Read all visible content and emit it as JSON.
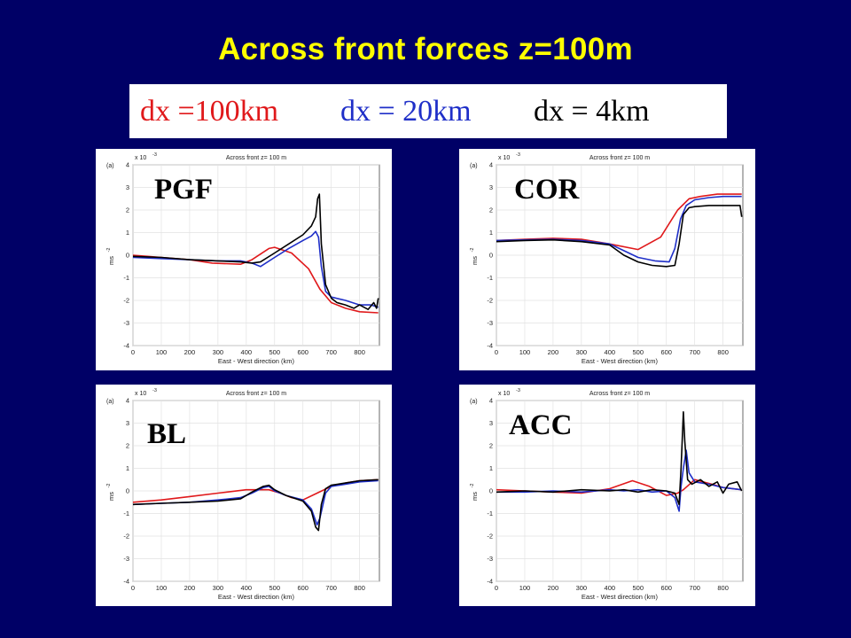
{
  "slide": {
    "title": "Across front forces z=100m",
    "title_color": "#ffff00",
    "background": "#000066"
  },
  "legend": [
    {
      "text": "dx =100km",
      "color": "#e0191b"
    },
    {
      "text": "dx = 20km",
      "color": "#1f2fc8"
    },
    {
      "text": "dx = 4km",
      "color": "#000000"
    }
  ],
  "chart_data": [
    {
      "type": "line",
      "label": "PGF",
      "panel_tag": "(a)",
      "title": "Across front z= 100 m",
      "xlabel": "East - West direction (km)",
      "ylabel": "ms",
      "ylabel_exp": "-2",
      "y_multiplier": "x 10",
      "y_multiplier_exp": "-3",
      "xlim": [
        0,
        870
      ],
      "ylim": [
        -4,
        4
      ],
      "xticks": [
        0,
        100,
        200,
        300,
        400,
        500,
        600,
        700,
        800
      ],
      "yticks": [
        -4,
        -3,
        -2,
        -1,
        0,
        1,
        2,
        3,
        4
      ],
      "grid": true,
      "series": [
        {
          "color": "#e0191b",
          "x": [
            0,
            100,
            200,
            280,
            380,
            420,
            480,
            500,
            560,
            620,
            660,
            700,
            750,
            800,
            866
          ],
          "y": [
            0,
            -0.1,
            -0.2,
            -0.35,
            -0.4,
            -0.2,
            0.3,
            0.35,
            0.1,
            -0.6,
            -1.5,
            -2.1,
            -2.35,
            -2.5,
            -2.55
          ]
        },
        {
          "color": "#1f2fc8",
          "x": [
            0,
            100,
            200,
            300,
            380,
            420,
            450,
            500,
            550,
            600,
            630,
            645,
            655,
            665,
            680,
            700,
            750,
            800,
            840,
            866
          ],
          "y": [
            -0.1,
            -0.15,
            -0.2,
            -0.25,
            -0.25,
            -0.35,
            -0.5,
            -0.1,
            0.3,
            0.65,
            0.85,
            1.05,
            0.8,
            -0.5,
            -1.6,
            -1.85,
            -2.0,
            -2.2,
            -2.2,
            -2.3
          ]
        },
        {
          "color": "#000000",
          "x": [
            0,
            100,
            200,
            300,
            380,
            420,
            450,
            500,
            550,
            600,
            630,
            645,
            652,
            658,
            665,
            680,
            700,
            720,
            750,
            780,
            800,
            830,
            850,
            860,
            866
          ],
          "y": [
            -0.05,
            -0.1,
            -0.2,
            -0.25,
            -0.3,
            -0.35,
            -0.3,
            0.1,
            0.5,
            0.9,
            1.3,
            1.7,
            2.5,
            2.7,
            0.5,
            -1.3,
            -1.9,
            -2.1,
            -2.2,
            -2.35,
            -2.2,
            -2.4,
            -2.1,
            -2.35,
            -1.9
          ]
        }
      ]
    },
    {
      "type": "line",
      "label": "COR",
      "panel_tag": "(a)",
      "title": "Across front z= 100 m",
      "xlabel": "East - West direction (km)",
      "ylabel": "ms",
      "ylabel_exp": "-2",
      "y_multiplier": "x 10",
      "y_multiplier_exp": "-3",
      "xlim": [
        0,
        870
      ],
      "ylim": [
        -4,
        4
      ],
      "xticks": [
        0,
        100,
        200,
        300,
        400,
        500,
        600,
        700,
        800
      ],
      "yticks": [
        -4,
        -3,
        -2,
        -1,
        0,
        1,
        2,
        3,
        4
      ],
      "grid": true,
      "series": [
        {
          "color": "#e0191b",
          "x": [
            0,
            100,
            200,
            300,
            400,
            500,
            580,
            640,
            680,
            720,
            780,
            866
          ],
          "y": [
            0.65,
            0.7,
            0.75,
            0.7,
            0.5,
            0.25,
            0.8,
            2.0,
            2.5,
            2.6,
            2.7,
            2.7
          ]
        },
        {
          "color": "#1f2fc8",
          "x": [
            0,
            100,
            200,
            300,
            400,
            450,
            500,
            560,
            610,
            630,
            650,
            670,
            700,
            750,
            800,
            866
          ],
          "y": [
            0.65,
            0.68,
            0.7,
            0.65,
            0.5,
            0.2,
            -0.1,
            -0.25,
            -0.3,
            0.3,
            1.6,
            2.2,
            2.45,
            2.55,
            2.6,
            2.6
          ]
        },
        {
          "color": "#000000",
          "x": [
            0,
            100,
            200,
            300,
            400,
            450,
            500,
            550,
            600,
            630,
            645,
            660,
            680,
            700,
            750,
            800,
            840,
            860,
            866
          ],
          "y": [
            0.6,
            0.65,
            0.68,
            0.6,
            0.45,
            0.0,
            -0.3,
            -0.45,
            -0.5,
            -0.45,
            0.5,
            1.8,
            2.1,
            2.15,
            2.2,
            2.2,
            2.2,
            2.2,
            1.7
          ]
        }
      ]
    },
    {
      "type": "line",
      "label": "BL",
      "panel_tag": "(a)",
      "title": "Across front z= 100 m",
      "xlabel": "East - West direction (km)",
      "ylabel": "ms",
      "ylabel_exp": "-2",
      "y_multiplier": "x 10",
      "y_multiplier_exp": "-3",
      "xlim": [
        0,
        870
      ],
      "ylim": [
        -4,
        4
      ],
      "xticks": [
        0,
        100,
        200,
        300,
        400,
        500,
        600,
        700,
        800
      ],
      "yticks": [
        -4,
        -3,
        -2,
        -1,
        0,
        1,
        2,
        3,
        4
      ],
      "grid": true,
      "series": [
        {
          "color": "#e0191b",
          "x": [
            0,
            100,
            200,
            300,
            400,
            480,
            520,
            560,
            600,
            650,
            700,
            750,
            800,
            866
          ],
          "y": [
            -0.5,
            -0.4,
            -0.25,
            -0.1,
            0.05,
            0.05,
            -0.1,
            -0.3,
            -0.4,
            -0.1,
            0.2,
            0.35,
            0.45,
            0.5
          ]
        },
        {
          "color": "#1f2fc8",
          "x": [
            0,
            100,
            200,
            300,
            380,
            420,
            460,
            480,
            500,
            540,
            600,
            630,
            650,
            660,
            680,
            700,
            750,
            800,
            866
          ],
          "y": [
            -0.6,
            -0.55,
            -0.5,
            -0.4,
            -0.3,
            -0.1,
            0.15,
            0.2,
            0.0,
            -0.2,
            -0.4,
            -0.8,
            -1.5,
            -1.2,
            -0.1,
            0.2,
            0.3,
            0.4,
            0.45
          ]
        },
        {
          "color": "#000000",
          "x": [
            0,
            100,
            200,
            300,
            380,
            420,
            460,
            480,
            500,
            540,
            600,
            630,
            645,
            655,
            665,
            680,
            700,
            750,
            800,
            866
          ],
          "y": [
            -0.6,
            -0.55,
            -0.5,
            -0.45,
            -0.35,
            -0.05,
            0.2,
            0.25,
            0.05,
            -0.2,
            -0.45,
            -0.9,
            -1.6,
            -1.75,
            -0.6,
            0.1,
            0.25,
            0.35,
            0.45,
            0.5
          ]
        }
      ]
    },
    {
      "type": "line",
      "label": "ACC",
      "panel_tag": "(a)",
      "title": "Across front z= 100 m",
      "xlabel": "East - West direction (km)",
      "ylabel": "ms",
      "ylabel_exp": "-2",
      "y_multiplier": "x 10",
      "y_multiplier_exp": "-3",
      "xlim": [
        0,
        870
      ],
      "ylim": [
        -4,
        4
      ],
      "xticks": [
        0,
        100,
        200,
        300,
        400,
        500,
        600,
        700,
        800
      ],
      "yticks": [
        -4,
        -3,
        -2,
        -1,
        0,
        1,
        2,
        3,
        4
      ],
      "grid": true,
      "series": [
        {
          "color": "#e0191b",
          "x": [
            0,
            100,
            200,
            300,
            400,
            480,
            540,
            600,
            640,
            660,
            700,
            760,
            800,
            866
          ],
          "y": [
            0.05,
            0.0,
            -0.05,
            -0.1,
            0.1,
            0.45,
            0.2,
            -0.2,
            -0.1,
            0.05,
            0.5,
            0.3,
            0.15,
            0.05
          ]
        },
        {
          "color": "#1f2fc8",
          "x": [
            0,
            100,
            200,
            300,
            400,
            450,
            500,
            550,
            600,
            630,
            645,
            652,
            660,
            670,
            680,
            700,
            750,
            800,
            866
          ],
          "y": [
            -0.05,
            -0.05,
            0.0,
            -0.05,
            0.05,
            0.0,
            0.05,
            -0.05,
            0.0,
            -0.3,
            -0.9,
            0.2,
            1.0,
            1.8,
            0.8,
            0.4,
            0.3,
            0.15,
            0.05
          ]
        },
        {
          "color": "#000000",
          "x": [
            0,
            100,
            200,
            300,
            400,
            450,
            500,
            550,
            600,
            630,
            645,
            652,
            660,
            665,
            675,
            690,
            720,
            750,
            780,
            800,
            820,
            850,
            866
          ],
          "y": [
            -0.05,
            0.0,
            -0.05,
            0.05,
            0.0,
            0.05,
            -0.05,
            0.05,
            0.0,
            -0.1,
            -0.6,
            1.0,
            3.5,
            2.2,
            0.5,
            0.3,
            0.5,
            0.2,
            0.4,
            -0.1,
            0.3,
            0.4,
            0.0
          ]
        }
      ]
    }
  ]
}
